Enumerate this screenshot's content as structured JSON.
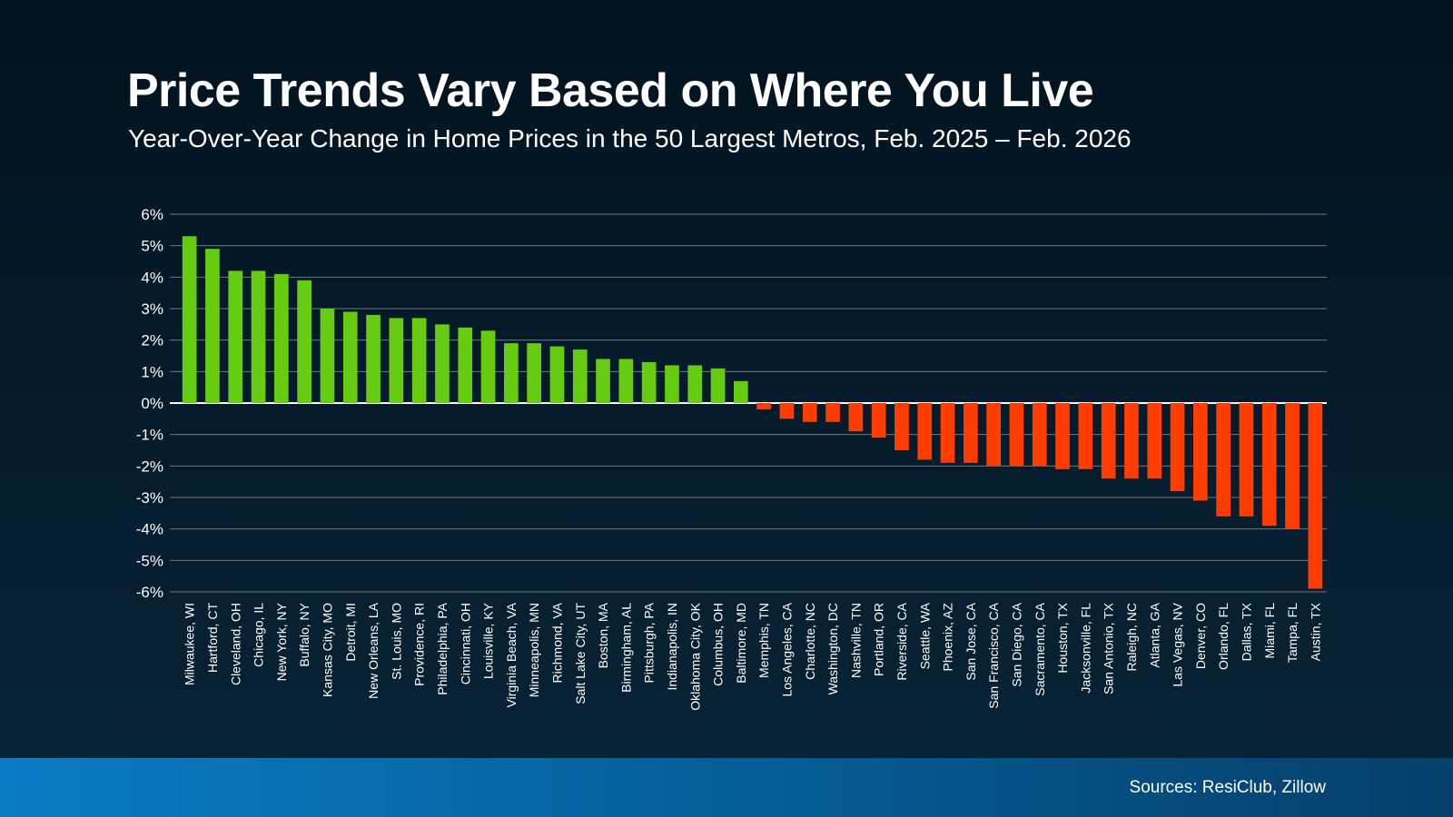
{
  "chart_data": {
    "type": "bar",
    "title": "Price Trends Vary Based on Where You Live",
    "subtitle": "Year-Over-Year Change in Home Prices in the 50 Largest Metros, Feb. 2025 – Feb. 2026",
    "xlabel": "",
    "ylabel": "",
    "ylim": [
      -6,
      6
    ],
    "yticks": [
      6,
      5,
      4,
      3,
      2,
      1,
      0,
      -1,
      -2,
      -3,
      -4,
      -5,
      -6
    ],
    "ytick_labels": [
      "6%",
      "5%",
      "4%",
      "3%",
      "2%",
      "1%",
      "0%",
      "-1%",
      "-2%",
      "-3%",
      "-4%",
      "-5%",
      "-6%"
    ],
    "grid": true,
    "categories": [
      "Milwaukee, WI",
      "Hartford, CT",
      "Cleveland, OH",
      "Chicago, IL",
      "New York, NY",
      "Buffalo, NY",
      "Kansas City, MO",
      "Detroit, MI",
      "New Orleans, LA",
      "St. Louis, MO",
      "Providence, RI",
      "Philadelphia, PA",
      "Cincinnati, OH",
      "Louisville, KY",
      "Virginia Beach, VA",
      "Minneapolis, MN",
      "Richmond, VA",
      "Salt Lake City, UT",
      "Boston, MA",
      "Birmingham, AL",
      "Pittsburgh, PA",
      "Indianapolis, IN",
      "Oklahoma City, OK",
      "Columbus, OH",
      "Baltimore, MD",
      "Memphis, TN",
      "Los Angeles, CA",
      "Charlotte, NC",
      "Washington, DC",
      "Nashville, TN",
      "Portland, OR",
      "Riverside, CA",
      "Seattle, WA",
      "Phoenix, AZ",
      "San Jose, CA",
      "San Francisco, CA",
      "San Diego, CA",
      "Sacramento, CA",
      "Houston, TX",
      "Jacksonville, FL",
      "San Antonio, TX",
      "Raleigh, NC",
      "Atlanta, GA",
      "Las Vegas, NV",
      "Denver, CO",
      "Orlando, FL",
      "Dallas, TX",
      "Miami, FL",
      "Tampa, FL",
      "Austin, TX"
    ],
    "values": [
      5.3,
      4.9,
      4.2,
      4.2,
      4.1,
      3.9,
      3.0,
      2.9,
      2.8,
      2.7,
      2.7,
      2.5,
      2.4,
      2.3,
      1.9,
      1.9,
      1.8,
      1.7,
      1.4,
      1.4,
      1.3,
      1.2,
      1.2,
      1.1,
      0.7,
      -0.2,
      -0.5,
      -0.6,
      -0.6,
      -0.9,
      -1.1,
      -1.5,
      -1.8,
      -1.9,
      -1.9,
      -2.0,
      -2.0,
      -2.0,
      -2.1,
      -2.1,
      -2.4,
      -2.4,
      -2.4,
      -2.8,
      -3.1,
      -3.6,
      -3.6,
      -3.9,
      -4.0,
      -5.9
    ],
    "colors": {
      "positive": "#66cc11",
      "negative": "#ff3d00"
    }
  },
  "footer": {
    "source": "Sources: ResiClub, Zillow"
  }
}
